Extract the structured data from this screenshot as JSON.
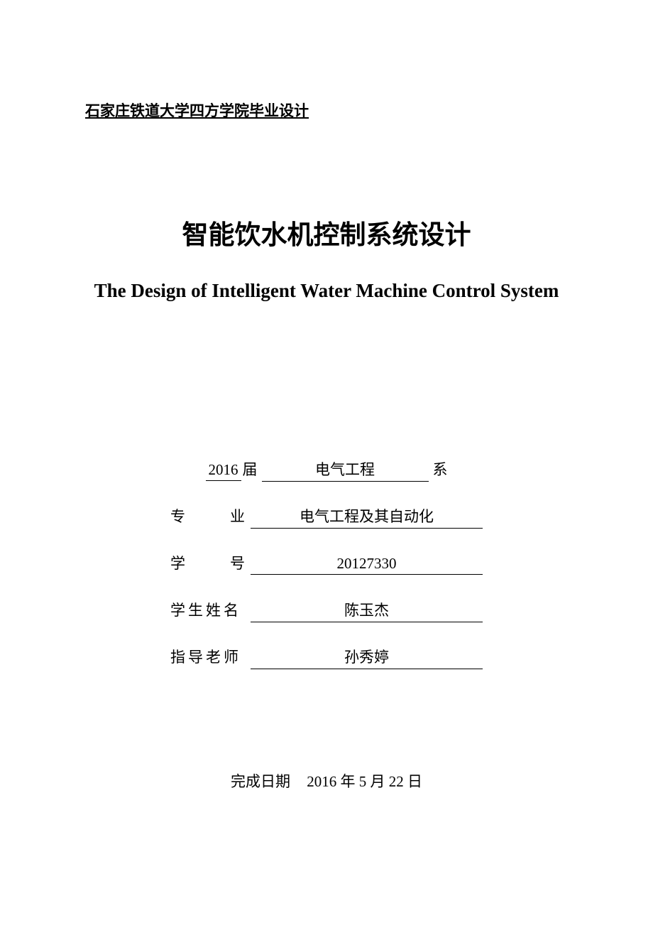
{
  "header": "石家庄铁道大学四方学院毕业设计",
  "title_cn": "智能饮水机控制系统设计",
  "title_en": "The Design of Intelligent Water Machine Control System",
  "first_row": {
    "year": "2016",
    "class_label": "届",
    "department": "电气工程",
    "dept_suffix": "系"
  },
  "fields": {
    "major": {
      "label_chars": [
        "专",
        "业"
      ],
      "value": "电气工程及其自动化"
    },
    "student_id": {
      "label_chars": [
        "学",
        "号"
      ],
      "value": "20127330"
    },
    "student_name": {
      "label": "学生姓名",
      "value": "陈玉杰"
    },
    "advisor": {
      "label": "指导老师",
      "value": "孙秀婷"
    }
  },
  "completion": {
    "label": "完成日期",
    "year": "2016",
    "year_unit": "年",
    "month": "5",
    "month_unit": "月",
    "day": "22",
    "day_unit": "日"
  },
  "colors": {
    "background": "#ffffff",
    "text": "#000000"
  }
}
